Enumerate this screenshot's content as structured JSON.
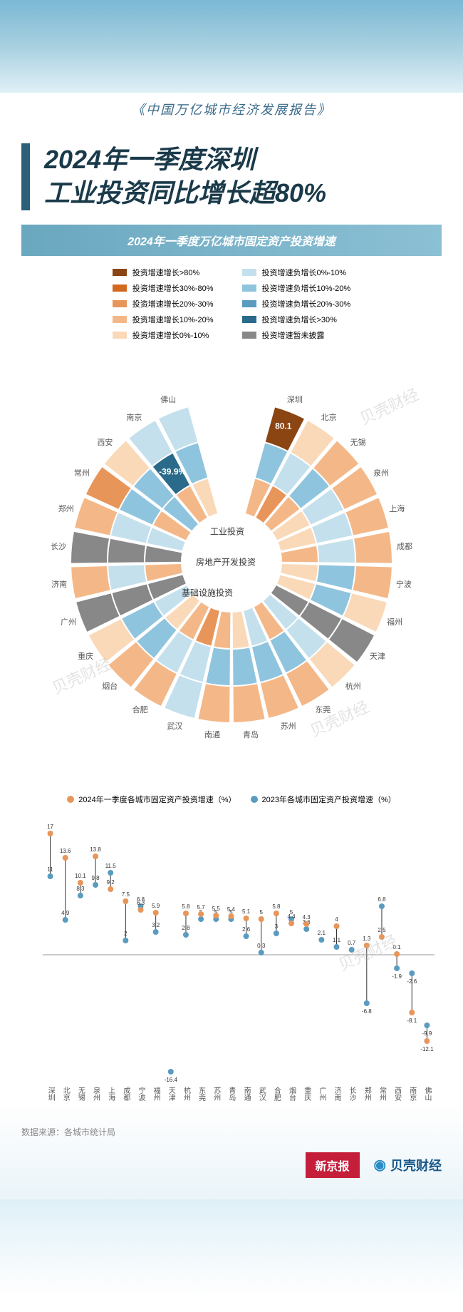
{
  "report_title": "《中国万亿城市经济发展报告》",
  "main_title_l1": "2024年一季度深圳",
  "main_title_l2": "工业投资同比增长超80%",
  "sub_banner": "2024年一季度万亿城市固定资产投资增速",
  "legend_left": [
    {
      "color": "#8b4513",
      "label": "投资增速增长>80%"
    },
    {
      "color": "#d2691e",
      "label": "投资增速增长30%-80%"
    },
    {
      "color": "#e8955a",
      "label": "投资增速增长20%-30%"
    },
    {
      "color": "#f4b888",
      "label": "投资增速增长10%-20%"
    },
    {
      "color": "#fad9b8",
      "label": "投资增速增长0%-10%"
    }
  ],
  "legend_right": [
    {
      "color": "#c4e0ed",
      "label": "投资增速负增长0%-10%"
    },
    {
      "color": "#8fc4de",
      "label": "投资增速负增长10%-20%"
    },
    {
      "color": "#5a9bc0",
      "label": "投资增速负增长20%-30%"
    },
    {
      "color": "#2a6a8a",
      "label": "投资增速负增长>30%"
    },
    {
      "color": "#888888",
      "label": "投资增速暂未披露"
    }
  ],
  "palette": {
    "p80": "#8b4513",
    "p30": "#d2691e",
    "p20": "#e8955a",
    "p10": "#f4b888",
    "p0": "#fad9b8",
    "n0": "#c4e0ed",
    "n10": "#8fc4de",
    "n20": "#5a9bc0",
    "n30": "#2a6a8a",
    "na": "#888888"
  },
  "ring_names": [
    "工业投资",
    "房地产开发投资",
    "基础设施投资"
  ],
  "ring_annotations": {
    "shenzhen_industrial": "80.1",
    "nanjing_realestate": "-39.9%"
  },
  "radial": {
    "type": "radial-heatmap",
    "inner_r": 70,
    "ring_width": 52,
    "gap_deg": 2,
    "cities": [
      "深圳",
      "北京",
      "无锡",
      "泉州",
      "上海",
      "成都",
      "宁波",
      "福州",
      "天津",
      "杭州",
      "东莞",
      "苏州",
      "青岛",
      "南通",
      "武汉",
      "合肥",
      "烟台",
      "重庆",
      "广州",
      "济南",
      "长沙",
      "郑州",
      "常州",
      "西安",
      "南京",
      "佛山"
    ],
    "rings": [
      [
        "p80",
        "p0",
        "p10",
        "p10",
        "p10",
        "p10",
        "p10",
        "p0",
        "na",
        "p0",
        "p10",
        "p10",
        "p10",
        "p10",
        "n0",
        "p10",
        "p10",
        "p0",
        "na",
        "p10",
        "na",
        "p10",
        "p20",
        "p0",
        "n0",
        "n0"
      ],
      [
        "n10",
        "n0",
        "n10",
        "n0",
        "n0",
        "n0",
        "n10",
        "n10",
        "na",
        "n0",
        "n10",
        "n10",
        "n10",
        "n10",
        "n0",
        "n0",
        "n10",
        "n10",
        "na",
        "n0",
        "na",
        "n0",
        "n10",
        "n10",
        "n30",
        "n10"
      ],
      [
        "p10",
        "p20",
        "p10",
        "p0",
        "p0",
        "p10",
        "p0",
        "p0",
        "na",
        "n0",
        "p10",
        "n0",
        "p0",
        "p10",
        "p20",
        "p10",
        "p0",
        "n0",
        "na",
        "p10",
        "na",
        "n0",
        "p10",
        "n10",
        "p10",
        "p0"
      ]
    ]
  },
  "dumbbell": {
    "type": "dumbbell",
    "legend": [
      {
        "color": "#e8955a",
        "label": "2024年一季度各城市固定资产投资增速（%）"
      },
      {
        "color": "#5a9bc0",
        "label": "2023年各城市固定资产投资增速（%）"
      }
    ],
    "ylim": [
      -18,
      18
    ],
    "zero_color": "#999",
    "cities": [
      "深圳",
      "北京",
      "无锡",
      "泉州",
      "上海",
      "成都",
      "宁波",
      "福州",
      "天津",
      "杭州",
      "东莞",
      "苏州",
      "青岛",
      "南通",
      "武汉",
      "合肥",
      "烟台",
      "重庆",
      "广州",
      "济南",
      "长沙",
      "郑州",
      "常州",
      "西安",
      "南京",
      "佛山"
    ],
    "v2024": [
      17,
      13.6,
      10.1,
      13.8,
      9.2,
      7.5,
      6.3,
      5.9,
      null,
      5.8,
      5.7,
      5.5,
      5.4,
      5.1,
      5,
      5.8,
      4.4,
      4.3,
      null,
      4,
      null,
      1.3,
      2.5,
      0.1,
      -8.1,
      -12.1
    ],
    "v2023": [
      11,
      4.9,
      8.3,
      9.8,
      11.5,
      2,
      6.8,
      3.2,
      -16.4,
      2.8,
      5,
      5,
      5,
      2.6,
      0.3,
      3,
      5,
      3.6,
      2.1,
      1.1,
      0.7,
      -6.8,
      6.8,
      -1.9,
      -2.6,
      -9.9
    ]
  },
  "source": "数据来源：各城市统计局",
  "logo1": "新京报",
  "logo2": "贝壳财经",
  "watermark": "贝壳财经"
}
